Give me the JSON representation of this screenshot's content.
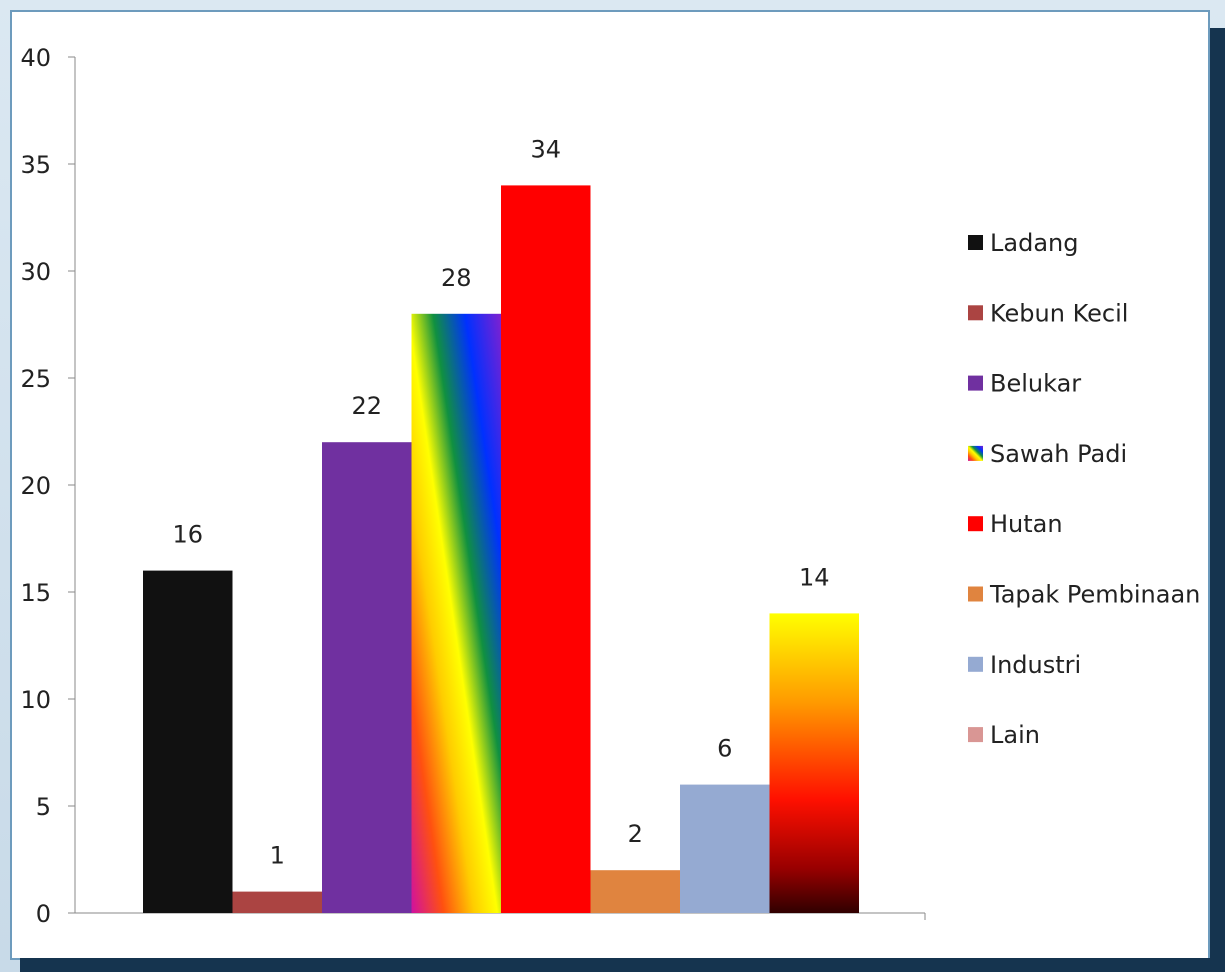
{
  "chart_data": {
    "type": "bar",
    "title": "",
    "xlabel": "",
    "ylabel": "",
    "ylim": [
      0,
      40
    ],
    "yticks": [
      0,
      5,
      10,
      15,
      20,
      25,
      30,
      35,
      40
    ],
    "grid": false,
    "legend_position": "right",
    "categories": [
      "Ladang",
      "Kebun Kecil",
      "Belukar",
      "Sawah Padi",
      "Hutan",
      "Tapak  Pembinaan",
      "Industri",
      "Lain"
    ],
    "values": [
      16,
      1,
      22,
      28,
      34,
      2,
      6,
      14
    ],
    "data_labels": [
      "16",
      "1",
      "22",
      "28",
      "34",
      "2",
      "6",
      "14"
    ],
    "colors": [
      "#111111",
      "#ab4442",
      "#7030a0",
      "rainbow",
      "#ff0000",
      "#e0843f",
      "#95aad2",
      "fire"
    ],
    "legend_colors": [
      "#111111",
      "#ab4442",
      "#7030a0",
      "rainbow",
      "#ff0000",
      "#e0843f",
      "#95aad2",
      "#d99694"
    ]
  }
}
